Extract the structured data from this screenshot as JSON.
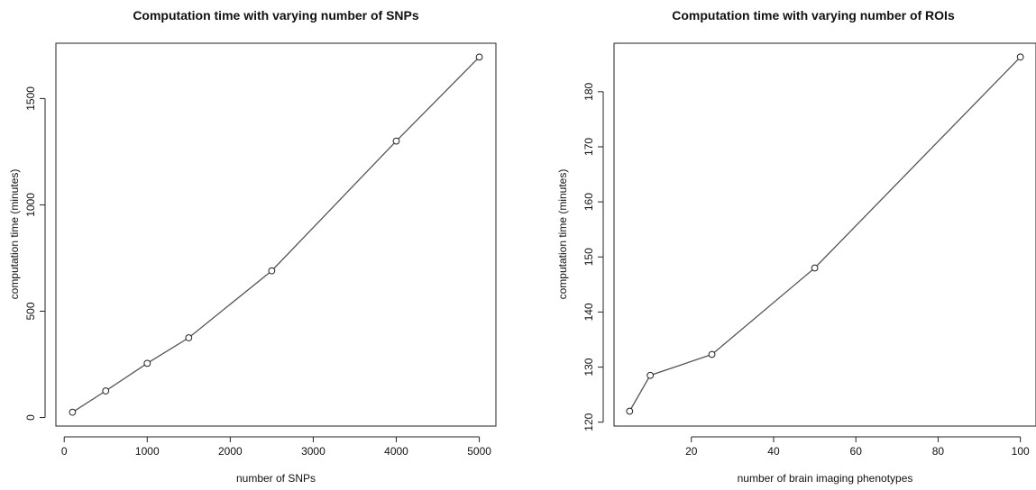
{
  "chart_data": [
    {
      "type": "line",
      "title": "Computation time with varying number of SNPs",
      "xlabel": "number of SNPs",
      "ylabel": "computation time (minutes)",
      "x": [
        100,
        500,
        1000,
        1500,
        2500,
        4000,
        5000
      ],
      "y": [
        25,
        125,
        255,
        375,
        690,
        1300,
        1695
      ],
      "xticks": [
        0,
        1000,
        2000,
        3000,
        4000,
        5000
      ],
      "yticks": [
        0,
        500,
        1000,
        1500
      ],
      "xlim": [
        -100,
        5200
      ],
      "ylim": [
        -40,
        1760
      ],
      "grid": false,
      "markers": "open-circle"
    },
    {
      "type": "line",
      "title": "Computation time with varying number of ROIs",
      "xlabel": "number of brain imaging phenotypes",
      "ylabel": "computation time (minutes)",
      "x": [
        5,
        10,
        25,
        50,
        100
      ],
      "y": [
        122,
        128.5,
        132.3,
        148,
        186.3
      ],
      "xticks": [
        20,
        40,
        60,
        80,
        100
      ],
      "yticks": [
        120,
        130,
        140,
        150,
        160,
        170,
        180
      ],
      "xlim": [
        1.2,
        103.8
      ],
      "ylim": [
        119.3,
        188.8
      ],
      "grid": false,
      "markers": "open-circle"
    }
  ]
}
